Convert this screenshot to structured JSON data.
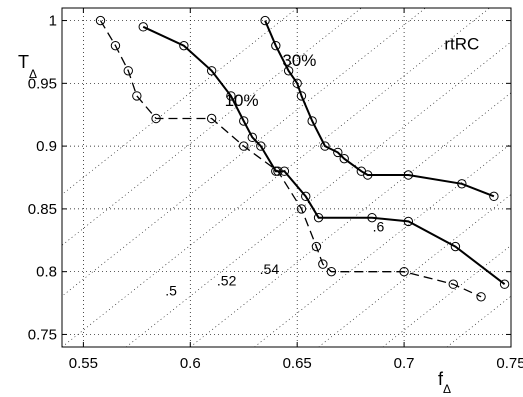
{
  "chart_data": {
    "type": "line",
    "title": "",
    "xlabel": {
      "main": "f",
      "sub": "Δ"
    },
    "ylabel": {
      "main": "T",
      "sub": "Δ"
    },
    "xlim": [
      0.54,
      0.75
    ],
    "ylim": [
      0.74,
      1.01
    ],
    "xticks": [
      0.55,
      0.6,
      0.65,
      0.7,
      0.75
    ],
    "yticks": [
      0.75,
      0.8,
      0.85,
      0.9,
      0.95,
      1.0
    ],
    "xtick_labels": [
      "0.55",
      "0.6",
      "0.65",
      "0.7",
      "0.75"
    ],
    "ytick_labels": [
      "0.75",
      "0.8",
      "0.85",
      "0.9",
      "0.95",
      "1"
    ],
    "grid": true,
    "series": [
      {
        "style": "dashed",
        "color": "#000000",
        "marker": "circle",
        "x": [
          0.558,
          0.565,
          0.571,
          0.575,
          0.584,
          0.61,
          0.625,
          0.641,
          0.652,
          0.659,
          0.662,
          0.666,
          0.7,
          0.723,
          0.736
        ],
        "y": [
          1.0,
          0.98,
          0.96,
          0.94,
          0.922,
          0.922,
          0.9,
          0.88,
          0.85,
          0.82,
          0.806,
          0.8,
          0.8,
          0.79,
          0.78
        ]
      },
      {
        "style": "solid",
        "color": "#000000",
        "marker": "circle",
        "x": [
          0.578,
          0.597,
          0.61,
          0.619,
          0.625,
          0.629,
          0.633,
          0.64,
          0.644,
          0.654,
          0.66,
          0.685,
          0.702,
          0.724,
          0.747
        ],
        "y": [
          0.995,
          0.98,
          0.96,
          0.94,
          0.92,
          0.907,
          0.9,
          0.88,
          0.88,
          0.86,
          0.843,
          0.843,
          0.84,
          0.82,
          0.79
        ]
      },
      {
        "style": "solid",
        "color": "#000000",
        "marker": "circle",
        "x": [
          0.635,
          0.64,
          0.646,
          0.65,
          0.652,
          0.657,
          0.663,
          0.669,
          0.672,
          0.68,
          0.683,
          0.702,
          0.727,
          0.742
        ],
        "y": [
          1.0,
          0.98,
          0.96,
          0.95,
          0.94,
          0.92,
          0.9,
          0.895,
          0.89,
          0.88,
          0.877,
          0.877,
          0.87,
          0.86
        ]
      }
    ],
    "annotations": [
      {
        "text": "rtRC",
        "x": 0.727,
        "y": 0.977
      },
      {
        "text": "30%",
        "x": 0.651,
        "y": 0.964
      },
      {
        "text": "10%",
        "x": 0.624,
        "y": 0.932
      },
      {
        "text": ".6",
        "x": 0.688,
        "y": 0.832
      },
      {
        "text": ".54",
        "x": 0.637,
        "y": 0.798
      },
      {
        "text": ".52",
        "x": 0.617,
        "y": 0.789
      },
      {
        "text": ".5",
        "x": 0.591,
        "y": 0.781
      }
    ]
  }
}
